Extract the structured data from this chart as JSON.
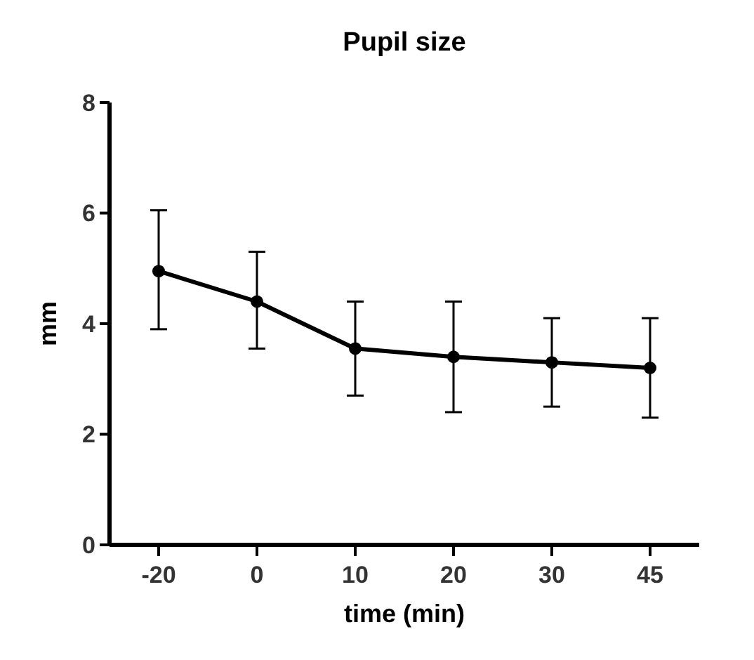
{
  "chart_data": {
    "type": "line",
    "title": "Pupil size",
    "xlabel": "time (min)",
    "ylabel": "mm",
    "categories": [
      "-20",
      "0",
      "10",
      "20",
      "30",
      "45"
    ],
    "series": [
      {
        "color": "#000000",
        "values": [
          4.95,
          4.4,
          3.55,
          3.4,
          3.3,
          3.2
        ],
        "errors": [
          [
            3.9,
            6.05
          ],
          [
            3.55,
            5.3
          ],
          [
            2.7,
            4.4
          ],
          [
            2.4,
            4.4
          ],
          [
            2.5,
            4.1
          ],
          [
            2.3,
            4.1
          ]
        ]
      }
    ],
    "ylim": [
      0,
      8
    ],
    "yticks": [
      0,
      2,
      4,
      6,
      8
    ],
    "marker": "circle"
  }
}
